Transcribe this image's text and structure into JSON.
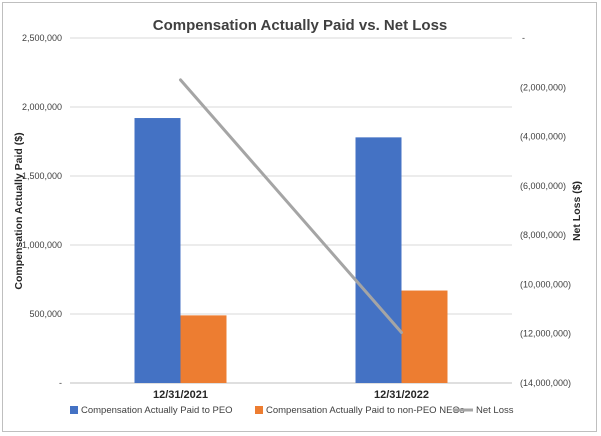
{
  "chart_data": {
    "type": "bar",
    "title": "Compensation Actually Paid vs. Net Loss",
    "categories": [
      "12/31/2021",
      "12/31/2022"
    ],
    "ylabel": "Compensation Actually Paid ($)",
    "y2label": "Net Loss ($)",
    "ylim": [
      0,
      2500000
    ],
    "y2lim": [
      -14000000,
      0
    ],
    "y_ticks": [
      0,
      500000,
      1000000,
      1500000,
      2000000,
      2500000
    ],
    "y_tick_labels": [
      "-",
      "500,000",
      "1,000,000",
      "1,500,000",
      "2,000,000",
      "2,500,000"
    ],
    "y2_ticks": [
      0,
      -2000000,
      -4000000,
      -6000000,
      -8000000,
      -10000000,
      -12000000,
      -14000000
    ],
    "y2_tick_labels": [
      "-",
      "(2,000,000)",
      "(4,000,000)",
      "(6,000,000)",
      "(8,000,000)",
      "(10,000,000)",
      "(12,000,000)",
      "(14,000,000)"
    ],
    "grid": true,
    "legend_position": "bottom",
    "series": [
      {
        "name": "Compensation Actually Paid to PEO",
        "type": "bar",
        "axis": "left",
        "color": "#4472c4",
        "values": [
          1920000,
          1780000
        ]
      },
      {
        "name": "Compensation Actually Paid to non-PEO NEOs",
        "type": "bar",
        "axis": "left",
        "color": "#ed7d31",
        "values": [
          490000,
          670000
        ]
      },
      {
        "name": "Net Loss",
        "type": "line",
        "axis": "right",
        "color": "#a5a5a5",
        "values": [
          -1700000,
          -11950000
        ]
      }
    ]
  }
}
